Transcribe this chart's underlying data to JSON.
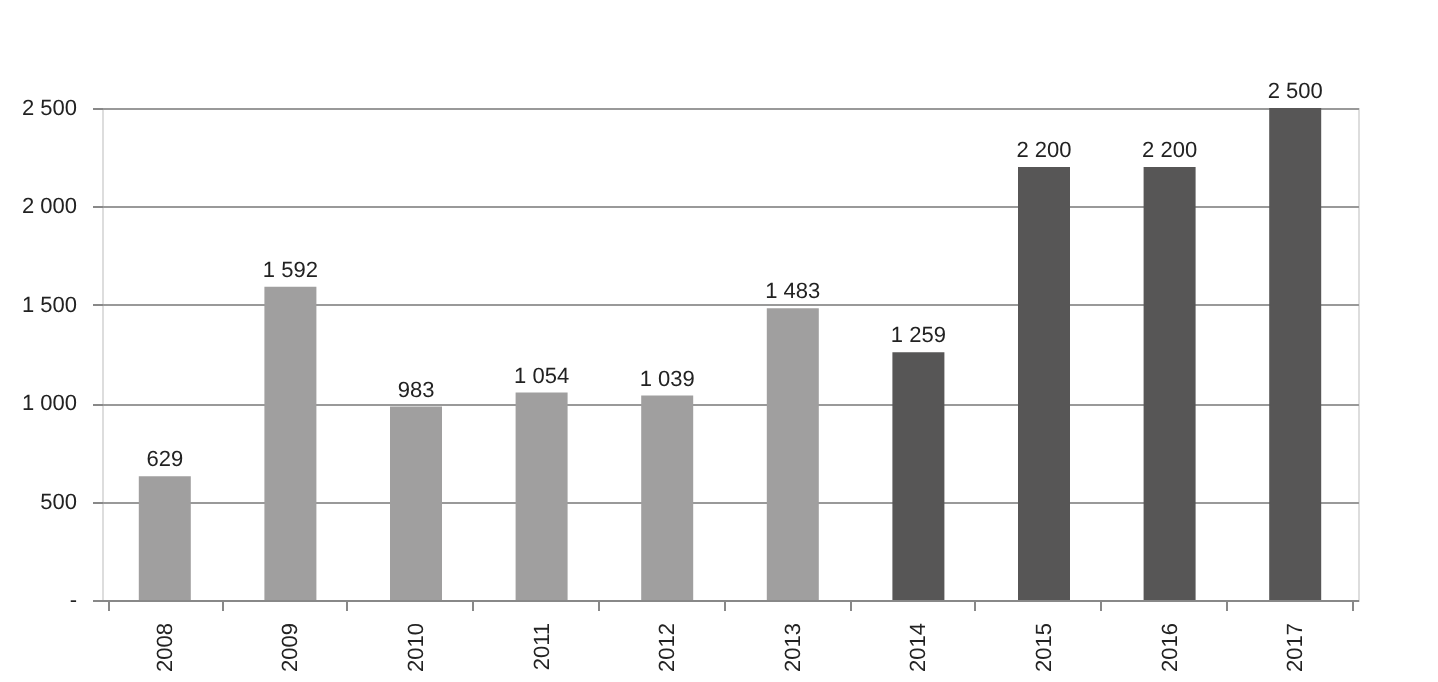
{
  "chart_data": {
    "type": "bar",
    "categories": [
      "2008",
      "2009",
      "2010",
      "2011",
      "2012",
      "2013",
      "2014",
      "2015",
      "2016",
      "2017"
    ],
    "values": [
      629,
      1592,
      983,
      1054,
      1039,
      1483,
      1259,
      2200,
      2200,
      2500
    ],
    "colors": [
      "#a09f9f",
      "#a09f9f",
      "#a09f9f",
      "#a09f9f",
      "#a09f9f",
      "#a09f9f",
      "#575656",
      "#575656",
      "#575656",
      "#575656"
    ],
    "value_labels": [
      "629",
      "1 592",
      "983",
      "1 054",
      "1 039",
      "1 483",
      "1 259",
      "2 200",
      "2 200",
      "2 500"
    ],
    "ylim": [
      0,
      2500
    ],
    "yticks": [
      {
        "value": 0,
        "label": "-"
      },
      500,
      {
        "value": 1000,
        "label": "1 000"
      },
      {
        "value": 1500,
        "label": "1 500"
      },
      {
        "value": 2000,
        "label": "2 000"
      },
      {
        "value": 2500,
        "label": "2 500"
      }
    ],
    "grid": "y",
    "legend": false
  }
}
